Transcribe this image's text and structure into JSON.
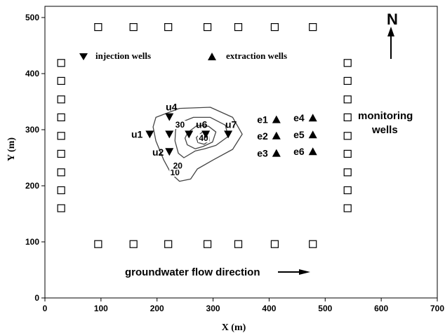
{
  "chart_data": {
    "type": "scatter",
    "xlabel": "X (m)",
    "ylabel": "Y (m)",
    "xlim": [
      0,
      700
    ],
    "ylim": [
      0,
      520
    ],
    "x_ticks": [
      0,
      100,
      200,
      300,
      400,
      500,
      600,
      700
    ],
    "y_ticks": [
      0,
      100,
      200,
      300,
      400,
      500
    ],
    "legend": {
      "injection_label": "injection wells",
      "extraction_label": "extraction wells"
    },
    "north_label": "N",
    "flow_label": "groundwater flow direction",
    "monitoring_label_line1": "monitoring",
    "monitoring_label_line2": "wells",
    "injection_wells": [
      {
        "name": "u1",
        "x": 187,
        "y": 292
      },
      {
        "name": "u2",
        "x": 222,
        "y": 261
      },
      {
        "name": "u4",
        "x": 222,
        "y": 323
      },
      {
        "name": "",
        "x": 222,
        "y": 292
      },
      {
        "name": "",
        "x": 257,
        "y": 292
      },
      {
        "name": "u6",
        "x": 287,
        "y": 292
      },
      {
        "name": "u7",
        "x": 327,
        "y": 292
      }
    ],
    "extraction_wells": [
      {
        "name": "e1",
        "x": 413,
        "y": 318
      },
      {
        "name": "e2",
        "x": 413,
        "y": 289
      },
      {
        "name": "e3",
        "x": 413,
        "y": 258
      },
      {
        "name": "e4",
        "x": 478,
        "y": 321
      },
      {
        "name": "e5",
        "x": 478,
        "y": 291
      },
      {
        "name": "e6",
        "x": 478,
        "y": 261
      }
    ],
    "contour_labels": [
      {
        "text": "10",
        "x": 232,
        "y": 220
      },
      {
        "text": "20",
        "x": 237,
        "y": 232
      },
      {
        "text": "30",
        "x": 241,
        "y": 305
      },
      {
        "text": "40",
        "x": 283,
        "y": 281
      }
    ],
    "contours": [
      {
        "level": 10,
        "points": [
          [
            198,
            322
          ],
          [
            240,
            338
          ],
          [
            295,
            340
          ],
          [
            335,
            322
          ],
          [
            352,
            292
          ],
          [
            335,
            265
          ],
          [
            300,
            246
          ],
          [
            272,
            230
          ],
          [
            260,
            212
          ],
          [
            240,
            208
          ],
          [
            225,
            222
          ],
          [
            212,
            246
          ],
          [
            198,
            280
          ],
          [
            193,
            305
          ]
        ]
      },
      {
        "level": 20,
        "points": [
          [
            235,
            310
          ],
          [
            265,
            322
          ],
          [
            295,
            322
          ],
          [
            322,
            308
          ],
          [
            327,
            288
          ],
          [
            305,
            272
          ],
          [
            285,
            266
          ],
          [
            268,
            262
          ],
          [
            248,
            250
          ],
          [
            238,
            258
          ],
          [
            232,
            280
          ],
          [
            233,
            298
          ]
        ]
      },
      {
        "level": 30,
        "points": [
          [
            255,
            295
          ],
          [
            272,
            308
          ],
          [
            292,
            306
          ],
          [
            305,
            296
          ],
          [
            299,
            278
          ],
          [
            282,
            270
          ],
          [
            268,
            266
          ],
          [
            254,
            273
          ],
          [
            250,
            285
          ]
        ]
      },
      {
        "level": 40,
        "points": [
          [
            270,
            286
          ],
          [
            281,
            296
          ],
          [
            292,
            292
          ],
          [
            293,
            280
          ],
          [
            284,
            274
          ],
          [
            273,
            277
          ]
        ]
      }
    ],
    "monitoring_wells": [
      [
        29,
        419
      ],
      [
        29,
        387
      ],
      [
        29,
        354
      ],
      [
        29,
        322
      ],
      [
        29,
        289
      ],
      [
        29,
        257
      ],
      [
        29,
        224
      ],
      [
        29,
        192
      ],
      [
        29,
        160
      ],
      [
        540,
        419
      ],
      [
        540,
        387
      ],
      [
        540,
        354
      ],
      [
        540,
        322
      ],
      [
        540,
        289
      ],
      [
        540,
        257
      ],
      [
        540,
        224
      ],
      [
        540,
        192
      ],
      [
        540,
        160
      ],
      [
        95,
        483
      ],
      [
        158,
        483
      ],
      [
        220,
        483
      ],
      [
        290,
        483
      ],
      [
        345,
        483
      ],
      [
        410,
        483
      ],
      [
        478,
        483
      ],
      [
        95,
        96
      ],
      [
        158,
        96
      ],
      [
        220,
        96
      ],
      [
        290,
        96
      ],
      [
        345,
        96
      ],
      [
        410,
        96
      ],
      [
        478,
        96
      ]
    ]
  }
}
